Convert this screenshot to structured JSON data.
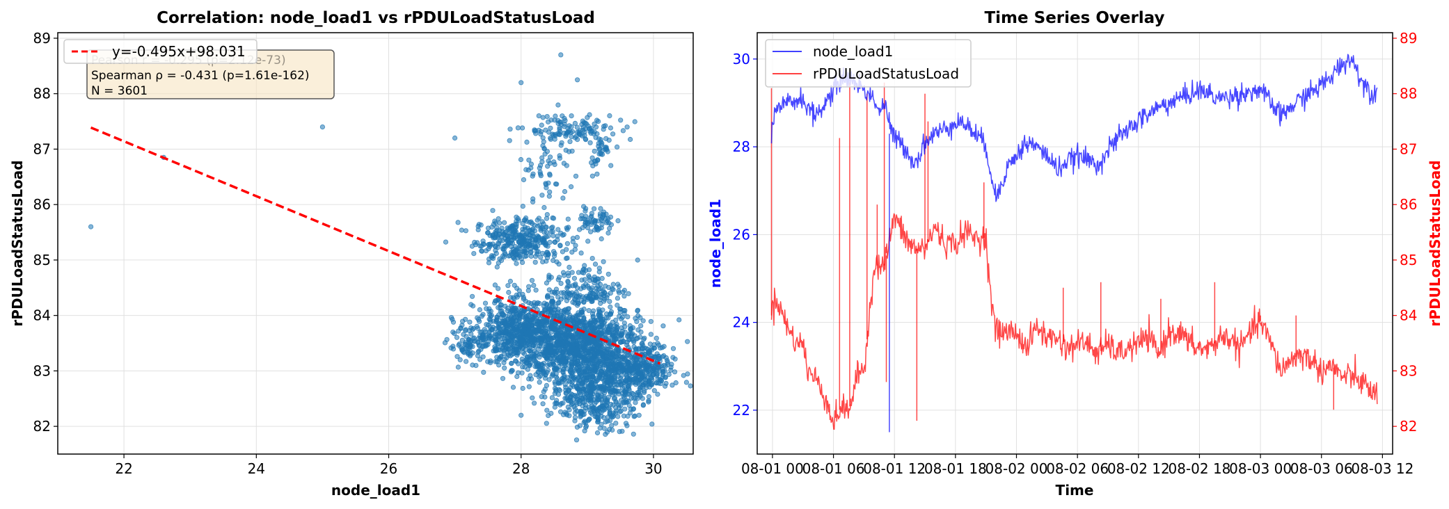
{
  "chart_data": [
    {
      "type": "scatter",
      "title": "Correlation: node_load1 vs rPDULoadStatusLoad",
      "xlabel": "node_load1",
      "ylabel": "rPDULoadStatusLoad",
      "xlim": [
        21.0,
        30.6
      ],
      "ylim": [
        81.5,
        89.1
      ],
      "xticks": [
        "22",
        "24",
        "26",
        "28",
        "30"
      ],
      "yticks": [
        "82",
        "83",
        "84",
        "85",
        "86",
        "87",
        "88",
        "89"
      ],
      "grid": true,
      "point_color": "#1f77b4",
      "fit": {
        "label": "y=-0.495x+98.031",
        "slope": -0.495,
        "intercept": 98.031,
        "x_range": [
          21.5,
          30.1
        ],
        "color": "#ff0000",
        "style": "dashed"
      },
      "legend": {
        "position": "top-left",
        "entries": [
          "y=-0.495x+98.031"
        ]
      },
      "stats_box": [
        "Pearson r = -0.295 (p=2.12e-73)",
        "Spearman ρ = -0.431 (p=1.61e-162)",
        "N = 3601"
      ],
      "outliers": [
        [
          21.5,
          85.6
        ],
        [
          25.0,
          87.4
        ],
        [
          27.0,
          87.2
        ],
        [
          22.6,
          86.85
        ],
        [
          28.6,
          88.7
        ],
        [
          28.0,
          88.2
        ],
        [
          28.85,
          88.25
        ],
        [
          28.0,
          82.2
        ]
      ],
      "clusters": [
        {
          "center": [
            28.0,
            85.35
          ],
          "spread": [
            0.35,
            0.2
          ],
          "count": 350
        },
        {
          "center": [
            28.7,
            87.35
          ],
          "spread": [
            0.35,
            0.15
          ],
          "count": 110
        },
        {
          "center": [
            29.2,
            87.0
          ],
          "spread": [
            0.1,
            0.2
          ],
          "count": 40
        },
        {
          "center": [
            29.15,
            85.7
          ],
          "spread": [
            0.12,
            0.12
          ],
          "count": 60
        },
        {
          "center": [
            27.2,
            83.45
          ],
          "spread": [
            0.15,
            0.15
          ],
          "count": 70
        },
        {
          "center": [
            28.0,
            83.7
          ],
          "spread": [
            0.35,
            0.3
          ],
          "count": 700
        },
        {
          "center": [
            28.9,
            83.5
          ],
          "spread": [
            0.45,
            0.35
          ],
          "count": 1150
        },
        {
          "center": [
            29.15,
            82.65
          ],
          "spread": [
            0.35,
            0.35
          ],
          "count": 550
        },
        {
          "center": [
            29.8,
            83.0
          ],
          "spread": [
            0.25,
            0.2
          ],
          "count": 300
        },
        {
          "center": [
            28.95,
            84.5
          ],
          "spread": [
            0.3,
            0.25
          ],
          "count": 150
        },
        {
          "center": [
            28.4,
            86.6
          ],
          "spread": [
            0.2,
            0.4
          ],
          "count": 60
        }
      ]
    },
    {
      "type": "line",
      "title": "Time Series Overlay",
      "xlabel": "Time",
      "ylabel_left": "node_load1",
      "ylabel_right": "rPDULoadStatusLoad",
      "x_range_hours": [
        -1.5,
        61
      ],
      "xticks": [
        "08-01 00",
        "08-01 06",
        "08-01 12",
        "08-01 18",
        "08-02 00",
        "08-02 06",
        "08-02 12",
        "08-02 18",
        "08-03 00",
        "08-03 06",
        "08-03 12"
      ],
      "ylim_left": [
        21.0,
        30.6
      ],
      "ylim_right": [
        81.5,
        89.1
      ],
      "yticks_left": [
        "22",
        "24",
        "26",
        "28",
        "30"
      ],
      "yticks_right": [
        "82",
        "83",
        "84",
        "85",
        "86",
        "87",
        "88",
        "89"
      ],
      "grid": true,
      "legend": {
        "position": "top-left"
      },
      "series": [
        {
          "name": "node_load1",
          "axis": "left",
          "color": "#0000ff",
          "x_hours": [
            -0.1,
            0,
            0.5,
            1.5,
            3,
            4,
            5,
            6,
            7,
            8,
            9,
            10,
            10.5,
            11,
            11.5,
            12,
            13,
            14,
            15,
            16,
            17,
            18,
            19,
            20,
            21,
            21.5,
            22,
            23,
            24,
            25,
            26,
            27,
            28,
            30,
            32,
            34,
            36,
            38,
            40,
            42,
            44,
            46,
            48,
            50,
            52,
            54,
            55,
            56,
            57,
            58,
            59,
            59.5
          ],
          "y": [
            28.3,
            28.6,
            28.8,
            29.0,
            29.1,
            28.7,
            28.9,
            29.3,
            29.6,
            29.5,
            29.3,
            29.1,
            28.8,
            29.0,
            28.5,
            28.2,
            28.0,
            27.6,
            28.1,
            28.3,
            28.4,
            28.6,
            28.5,
            28.3,
            28.0,
            27.4,
            26.8,
            27.5,
            27.8,
            28.1,
            28.0,
            27.8,
            27.5,
            27.8,
            27.6,
            28.2,
            28.6,
            28.9,
            29.1,
            29.3,
            29.1,
            29.2,
            29.3,
            28.7,
            29.1,
            29.4,
            29.6,
            29.9,
            30.0,
            29.5,
            29.2,
            29.3
          ],
          "spike": {
            "x_hour": 11.5,
            "y": 21.5
          }
        },
        {
          "name": "rPDULoadStatusLoad",
          "axis": "right",
          "color": "#ff0000",
          "x_hours": [
            -0.1,
            0,
            0.5,
            1,
            1.5,
            2,
            2.5,
            3,
            3.5,
            4,
            4.5,
            5,
            5.5,
            6,
            6.5,
            7,
            7.5,
            8,
            8.5,
            9,
            10,
            11,
            12,
            13,
            14,
            15,
            16,
            17,
            18,
            19,
            20,
            21,
            21.5,
            22,
            23,
            24,
            25,
            26,
            27,
            28,
            29,
            30,
            31,
            32,
            33,
            34,
            35,
            36,
            37,
            38,
            39,
            40,
            41,
            42,
            43,
            44,
            45,
            46,
            47,
            48,
            49,
            50,
            51,
            52,
            53,
            54,
            55,
            56,
            57,
            58,
            59,
            59.5
          ],
          "y": [
            84.0,
            84.2,
            84.3,
            84.0,
            83.8,
            83.6,
            83.5,
            83.5,
            83.0,
            82.9,
            82.8,
            82.6,
            82.4,
            82.0,
            82.3,
            82.3,
            82.3,
            82.6,
            83.0,
            83.0,
            84.9,
            84.9,
            85.8,
            85.4,
            85.2,
            85.2,
            85.6,
            85.3,
            85.3,
            85.5,
            85.4,
            85.4,
            84.3,
            83.7,
            83.7,
            83.7,
            83.4,
            83.8,
            83.6,
            83.6,
            83.4,
            83.5,
            83.5,
            83.3,
            83.5,
            83.3,
            83.4,
            83.5,
            83.6,
            83.3,
            83.7,
            83.7,
            83.5,
            83.4,
            83.4,
            83.6,
            83.6,
            83.4,
            83.7,
            83.9,
            83.5,
            83.0,
            83.2,
            83.3,
            83.2,
            83.0,
            83.1,
            82.9,
            82.9,
            82.8,
            82.6,
            82.6
          ],
          "spikes": [
            [
              -0.1,
              88.1
            ],
            [
              6.6,
              87.2
            ],
            [
              7.6,
              88.2
            ],
            [
              7.7,
              82.5
            ],
            [
              9.3,
              88.0
            ],
            [
              10.3,
              86.0
            ],
            [
              11.0,
              88.2
            ],
            [
              11.2,
              82.8
            ],
            [
              14.2,
              82.1
            ],
            [
              15.0,
              88.0
            ],
            [
              15.3,
              87.5
            ],
            [
              20.8,
              86.4
            ],
            [
              28.6,
              84.5
            ],
            [
              32.3,
              84.6
            ],
            [
              38.2,
              84.3
            ],
            [
              43.5,
              84.6
            ],
            [
              48.0,
              84.0
            ],
            [
              51.5,
              84.0
            ],
            [
              55.2,
              82.3
            ]
          ]
        }
      ]
    }
  ]
}
